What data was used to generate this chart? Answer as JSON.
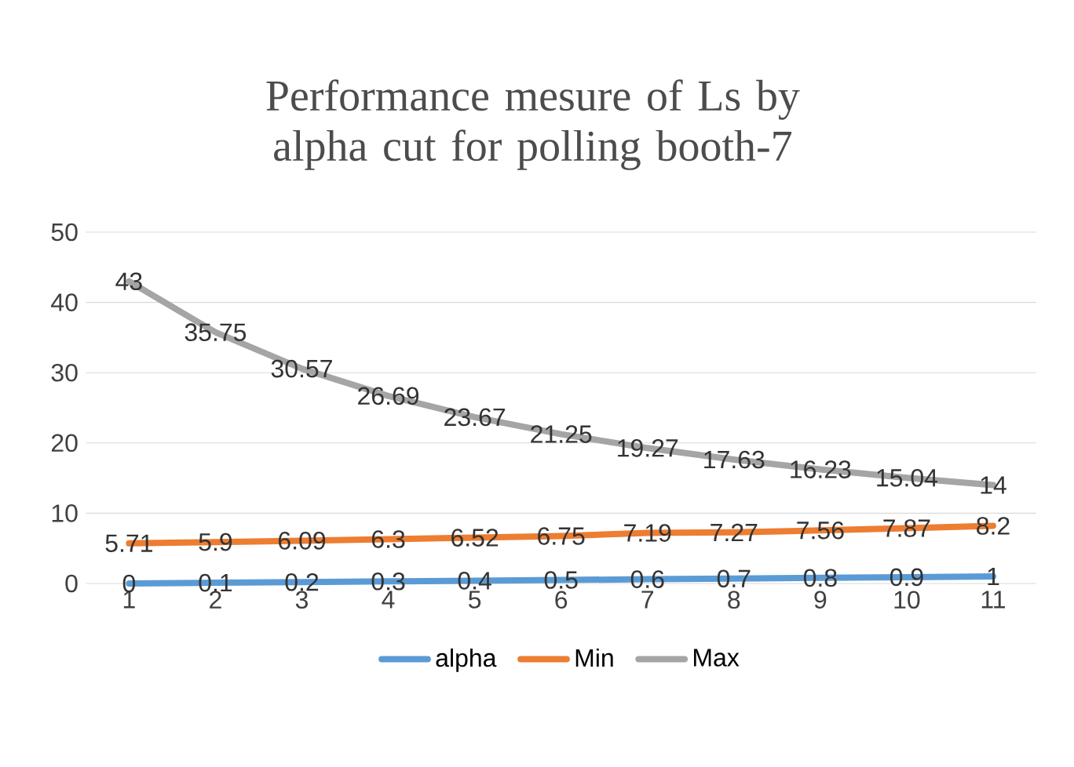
{
  "chart_data": {
    "type": "line",
    "title": "Performance mesure of Ls by alpha cut for polling booth-7",
    "categories": [
      "1",
      "2",
      "3",
      "4",
      "5",
      "6",
      "7",
      "8",
      "9",
      "10",
      "11"
    ],
    "series": [
      {
        "name": "alpha",
        "color": "#5b9bd5",
        "values": [
          0,
          0.1,
          0.2,
          0.3,
          0.4,
          0.5,
          0.6,
          0.7,
          0.8,
          0.9,
          1
        ]
      },
      {
        "name": "Min",
        "color": "#ed7d31",
        "values": [
          5.71,
          5.9,
          6.09,
          6.3,
          6.52,
          6.75,
          7.19,
          7.27,
          7.56,
          7.87,
          8.2
        ]
      },
      {
        "name": "Max",
        "color": "#a5a5a5",
        "values": [
          43,
          35.75,
          30.57,
          26.69,
          23.67,
          21.25,
          19.27,
          17.63,
          16.23,
          15.04,
          14
        ]
      }
    ],
    "ylim": [
      0,
      50
    ],
    "yticks": [
      0,
      10,
      20,
      30,
      40,
      50
    ],
    "grid": "y",
    "legend": "bottom",
    "data_labels": true,
    "marker": "none",
    "line_style": "solid"
  }
}
